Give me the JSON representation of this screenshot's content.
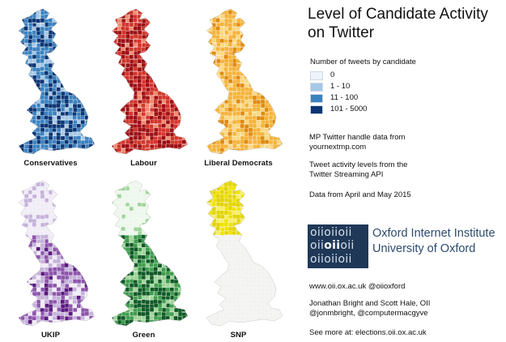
{
  "title_line1": "Level of Candidate Activity",
  "title_line2": "on Twitter",
  "legend": {
    "title": "Number of tweets by candidate",
    "items": [
      {
        "label": "0",
        "color": "#eef4fb"
      },
      {
        "label": "1 - 10",
        "color": "#a6c8e6"
      },
      {
        "label": "11 - 100",
        "color": "#3b82c0"
      },
      {
        "label": "101 - 5000",
        "color": "#0c3574"
      }
    ]
  },
  "maps": [
    {
      "label": "Conservatives",
      "palette": [
        "#eef4fb",
        "#a6c8e6",
        "#3b82c0",
        "#0c3574"
      ],
      "coverage": "all"
    },
    {
      "label": "Labour",
      "palette": [
        "#fde6dc",
        "#f08c6e",
        "#d3352a",
        "#9e0f14"
      ],
      "coverage": "all"
    },
    {
      "label": "Liberal Democrats",
      "palette": [
        "#fff6dc",
        "#fbd77f",
        "#f5b33a",
        "#e08a10"
      ],
      "coverage": "all"
    },
    {
      "label": "UKIP",
      "palette": [
        "#f0ecf6",
        "#c5b2da",
        "#8e55ad",
        "#5b1a7e"
      ],
      "coverage": "all"
    },
    {
      "label": "Green",
      "palette": [
        "#edf7ec",
        "#9fd59a",
        "#3f9e4d",
        "#0f5a26"
      ],
      "coverage": "all"
    },
    {
      "label": "SNP",
      "palette": [
        "#f2f2f0",
        "#f7ee66",
        "#f0e300",
        "#e3d400"
      ],
      "coverage": "scotland"
    }
  ],
  "notes": {
    "handle_line1": "MP Twitter handle data from",
    "handle_line2": "yournextmp.com",
    "tweet_line1": "Tweet activity levels from the",
    "tweet_line2": "Twitter Streaming API",
    "period": "Data from April and May 2015",
    "links": "www.oii.ox.ac.uk   @oiioxford",
    "authors": "Jonathan Bright and Scott Hale, OII",
    "handles": "@jonmbright, @computermacgyve",
    "see_more": "See more at: elections.oii.ox.ac.uk"
  },
  "logo": {
    "rows": [
      "oiioiioii",
      "oiioiioii",
      "oiioiioii"
    ],
    "institute": "Oxford Internet Institute",
    "university": "University of Oxford"
  }
}
